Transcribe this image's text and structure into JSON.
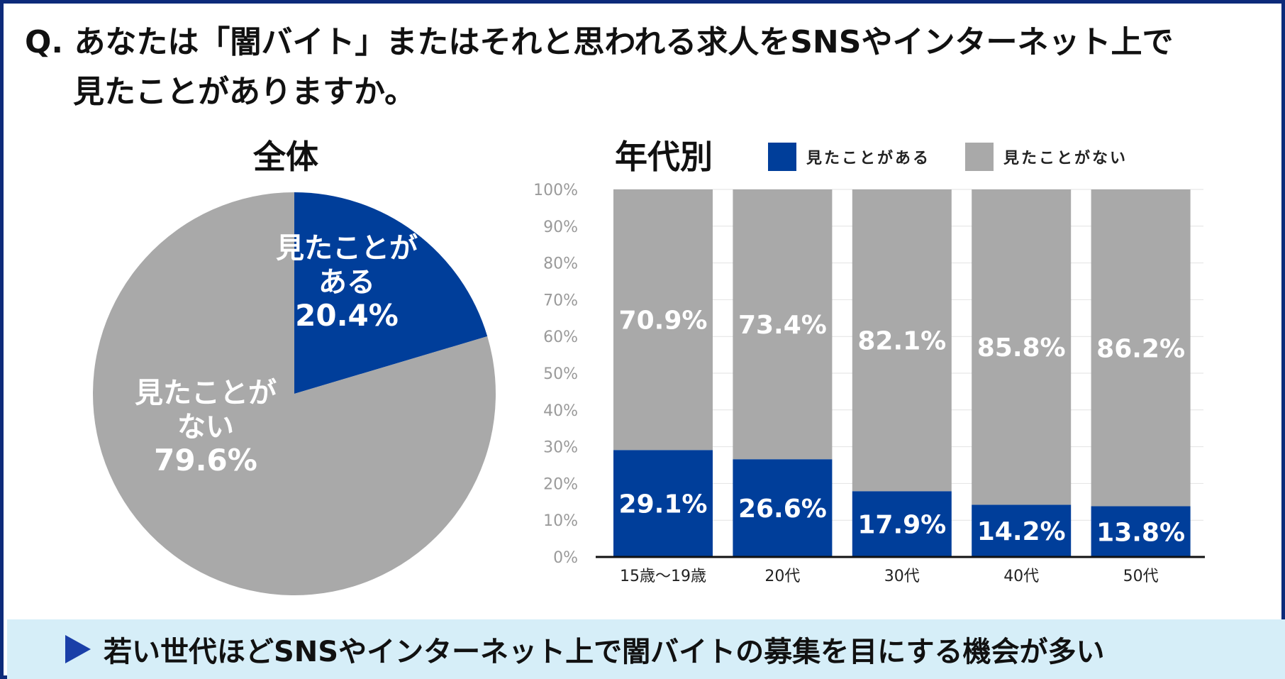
{
  "question": {
    "line1": "Q. あなたは「闇バイト」またはそれと思われる求人をSNSやインターネット上で",
    "line2": "見たことがありますか。"
  },
  "pie_title": "全体",
  "bar_title": "年代別",
  "legend": [
    {
      "label": "見たことがある",
      "color": "#003e9a"
    },
    {
      "label": "見たことがない",
      "color": "#a9a9a9"
    }
  ],
  "colors": {
    "seen": "#003e9a",
    "not_seen": "#a9a9a9",
    "banner_bg": "#d6eef8",
    "frame": "#0d2b7a"
  },
  "chart_data": [
    {
      "type": "pie",
      "title": "全体",
      "labels": [
        "見たことがある",
        "見たことがない"
      ],
      "values": [
        20.4,
        79.6
      ],
      "display_labels": [
        [
          "見たことが",
          "ある",
          "20.4%"
        ],
        [
          "見たことが",
          "ない",
          "79.6%"
        ]
      ]
    },
    {
      "type": "bar",
      "stacked": true,
      "title": "年代別",
      "categories": [
        "15歳～19歳",
        "20代",
        "30代",
        "40代",
        "50代"
      ],
      "series": [
        {
          "name": "見たことがある",
          "values": [
            29.1,
            26.6,
            17.9,
            14.2,
            13.8
          ]
        },
        {
          "name": "見たことがない",
          "values": [
            70.9,
            73.4,
            82.1,
            85.8,
            86.2
          ]
        }
      ],
      "ylim": [
        0,
        100
      ],
      "yticks": [
        "0%",
        "10%",
        "20%",
        "30%",
        "40%",
        "50%",
        "60%",
        "70%",
        "80%",
        "90%",
        "100%"
      ],
      "grid": true,
      "legend_position": "top-right"
    }
  ],
  "banner": {
    "text": "若い世代ほどSNSやインターネット上で闇バイトの募集を目にする機会が多い"
  }
}
